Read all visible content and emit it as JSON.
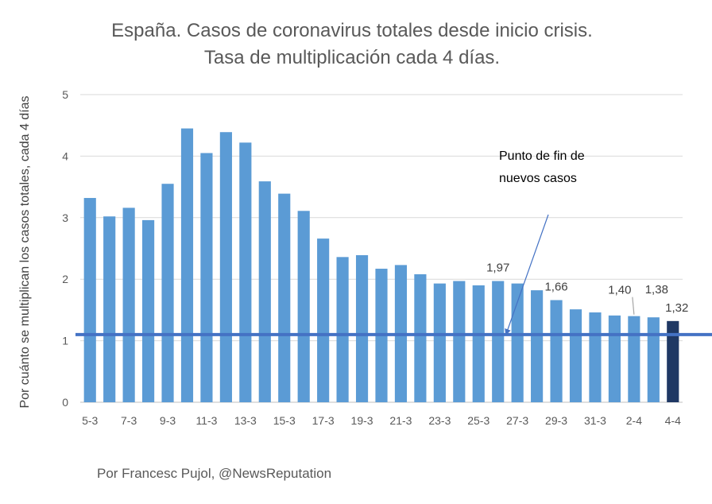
{
  "chart_data": {
    "type": "bar",
    "title": "España. Casos de coronavirus totales desde inicio crisis.",
    "subtitle": "Tasa de multiplicación cada 4 días.",
    "xlabel": "",
    "ylabel": "Por cuánto se multiplican los casos totales, cada 4 días",
    "ylim": [
      0,
      5
    ],
    "yticks": [
      "0",
      "1",
      "2",
      "3",
      "4",
      "5"
    ],
    "grid": true,
    "categories": [
      "5-3",
      "6-3",
      "7-3",
      "8-3",
      "9-3",
      "10-3",
      "11-3",
      "12-3",
      "13-3",
      "14-3",
      "15-3",
      "16-3",
      "17-3",
      "18-3",
      "19-3",
      "20-3",
      "21-3",
      "22-3",
      "23-3",
      "24-3",
      "25-3",
      "26-3",
      "27-3",
      "28-3",
      "29-3",
      "30-3",
      "31-3",
      "1-4",
      "2-4",
      "3-4",
      "4-4"
    ],
    "x_tick_labels": [
      "5-3",
      "7-3",
      "9-3",
      "11-3",
      "13-3",
      "15-3",
      "17-3",
      "19-3",
      "21-3",
      "23-3",
      "25-3",
      "27-3",
      "29-3",
      "31-3",
      "2-4",
      "4-4"
    ],
    "values": [
      3.32,
      3.02,
      3.16,
      2.96,
      3.55,
      4.45,
      4.05,
      4.39,
      4.22,
      3.59,
      3.39,
      3.11,
      2.66,
      2.36,
      2.39,
      2.17,
      2.23,
      2.08,
      1.93,
      1.97,
      1.9,
      1.97,
      1.93,
      1.82,
      1.66,
      1.51,
      1.46,
      1.41,
      1.4,
      1.38,
      1.32
    ],
    "bar_color": "#5b9bd5",
    "highlight_color": "#1f3864",
    "highlight_index": 30,
    "data_labels": [
      {
        "index": 21,
        "text": "1,97"
      },
      {
        "index": 24,
        "text": "1,66"
      },
      {
        "index": 28,
        "text": "1,40"
      },
      {
        "index": 29,
        "text": "1,38"
      },
      {
        "index": 30,
        "text": "1,32"
      }
    ],
    "reference_line": {
      "value": 1.1,
      "color": "#4472c4"
    },
    "annotation": {
      "lines": [
        "Punto de fin de",
        "nuevos casos"
      ]
    }
  },
  "footer": {
    "credit": "Por Francesc Pujol, @NewsReputation"
  }
}
